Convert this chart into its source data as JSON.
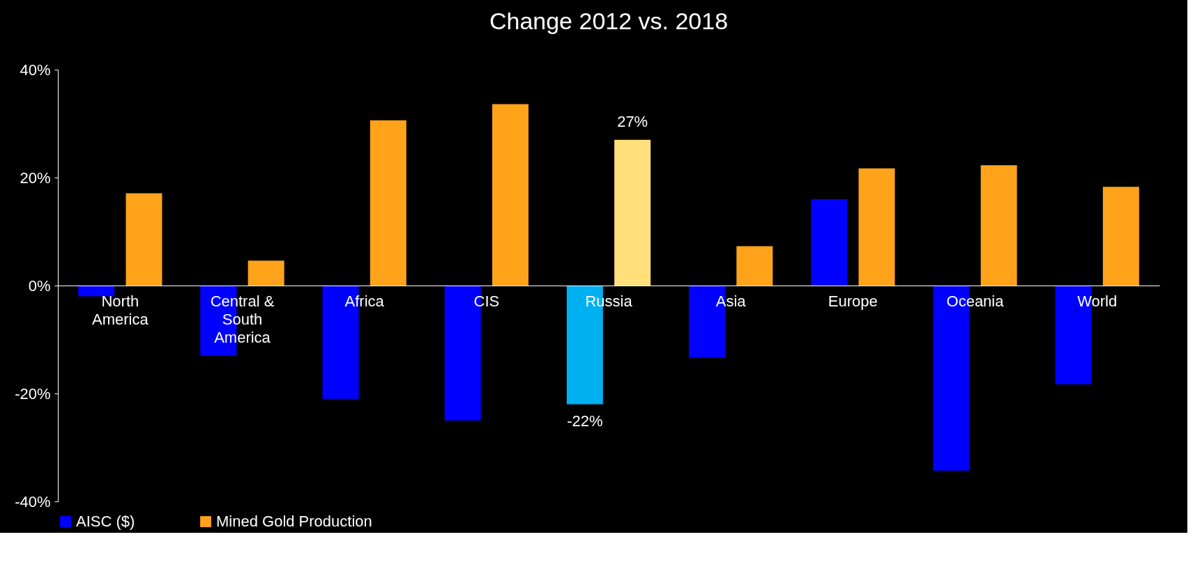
{
  "chart_data": {
    "type": "bar",
    "title": "Change 2012 vs. 2018",
    "categories": [
      "North America",
      "Central & South America",
      "Africa",
      "CIS",
      "Russia",
      "Asia",
      "Europe",
      "Oceania",
      "World"
    ],
    "series": [
      {
        "name": "AISC ($)",
        "color": "#0000ff",
        "colors": [
          "#0000ff",
          "#0000ff",
          "#0000ff",
          "#0000ff",
          "#00b0f0",
          "#0000ff",
          "#0000ff",
          "#0000ff",
          "#0000ff"
        ],
        "values": [
          -2,
          -13,
          -21,
          -25,
          -22,
          -13.4,
          16,
          -34.3,
          -18.3
        ],
        "value_labels": [
          null,
          null,
          null,
          null,
          "-22%",
          null,
          null,
          null,
          null
        ]
      },
      {
        "name": "Mined Gold Production",
        "color": "#ffa31a",
        "colors": [
          "#ffa31a",
          "#ffa31a",
          "#ffa31a",
          "#ffa31a",
          "#ffe07a",
          "#ffa31a",
          "#ffa31a",
          "#ffa31a",
          "#ffa31a"
        ],
        "values": [
          17.1,
          4.6,
          30.6,
          33.6,
          27,
          7.3,
          21.7,
          22.3,
          18.3
        ],
        "value_labels": [
          null,
          null,
          null,
          null,
          "27%",
          null,
          null,
          null,
          null
        ]
      }
    ],
    "ylim": [
      -40,
      40
    ],
    "yticks": [
      {
        "value": -40,
        "label": "-40%"
      },
      {
        "value": -20,
        "label": "-20%"
      },
      {
        "value": 0,
        "label": "0%"
      },
      {
        "value": 20,
        "label": "20%"
      },
      {
        "value": 40,
        "label": "40%"
      }
    ],
    "grid": false,
    "legend": "bottom"
  }
}
